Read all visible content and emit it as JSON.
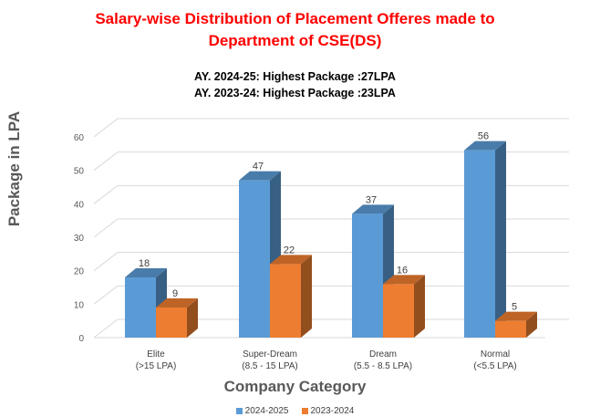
{
  "colors": {
    "series_2024": "#5b9bd5",
    "series_2023": "#ed7d31",
    "title": "#ff0000",
    "axis_text": "#595959",
    "grid": "#d9d9d9"
  },
  "chart_data": {
    "type": "bar",
    "title": "Salary-wise Distribution of Placement Offeres made to Department of CSE(DS)",
    "title_lines": [
      "Salary-wise Distribution of Placement Offeres made to",
      "Department of CSE(DS)"
    ],
    "subtitle_lines": [
      "AY. 2024-25: Highest Package :27LPA",
      "AY. 2023-24: Highest Package :23LPA"
    ],
    "categories": [
      [
        "Elite",
        "(>15 LPA)"
      ],
      [
        "Super-Dream",
        "(8.5 - 15 LPA)"
      ],
      [
        "Dream",
        "(5.5 - 8.5 LPA)"
      ],
      [
        "Normal",
        "(<5.5 LPA)"
      ]
    ],
    "series": [
      {
        "name": "2024-2025",
        "values": [
          18,
          47,
          37,
          56
        ]
      },
      {
        "name": "2023-2024",
        "values": [
          9,
          22,
          16,
          5
        ]
      }
    ],
    "xlabel": "Company Category",
    "ylabel": "Package in LPA",
    "ylim": [
      0,
      60
    ],
    "yticks": [
      0,
      10,
      20,
      30,
      40,
      50,
      60
    ],
    "grid": true,
    "legend_position": "bottom",
    "style": "3d-column"
  }
}
